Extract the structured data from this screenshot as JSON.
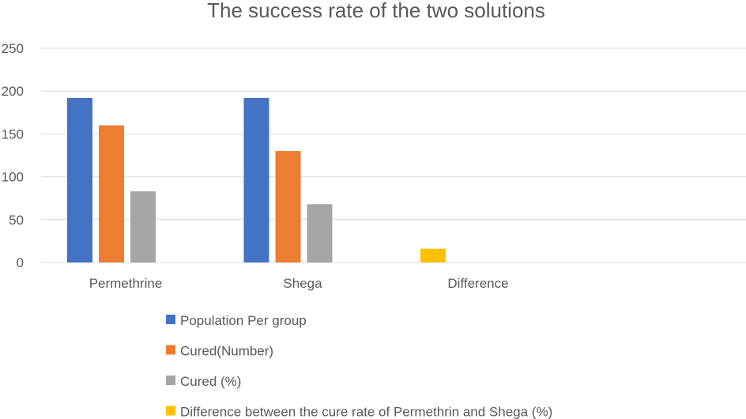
{
  "chart_data": {
    "type": "bar",
    "title": "The success rate of the two solutions",
    "xlabel": "",
    "ylabel": "",
    "categories": [
      "Permethrine",
      "Shega",
      "Difference"
    ],
    "ylim": [
      0,
      250
    ],
    "yticks": [
      0,
      50,
      100,
      150,
      200,
      250
    ],
    "grid": true,
    "legend_position": "bottom",
    "series": [
      {
        "name": "Population Per group",
        "color": "#4472C4",
        "values": [
          192,
          192,
          null
        ]
      },
      {
        "name": "Cured(Number)",
        "color": "#ED7D31",
        "values": [
          160,
          130,
          null
        ]
      },
      {
        "name": "Cured (%)",
        "color": "#A5A5A5",
        "values": [
          83,
          68,
          null
        ]
      },
      {
        "name": "Difference between the cure rate of Permethrin and Shega (%)",
        "color": "#FFC000",
        "values": [
          null,
          null,
          16
        ]
      }
    ]
  }
}
